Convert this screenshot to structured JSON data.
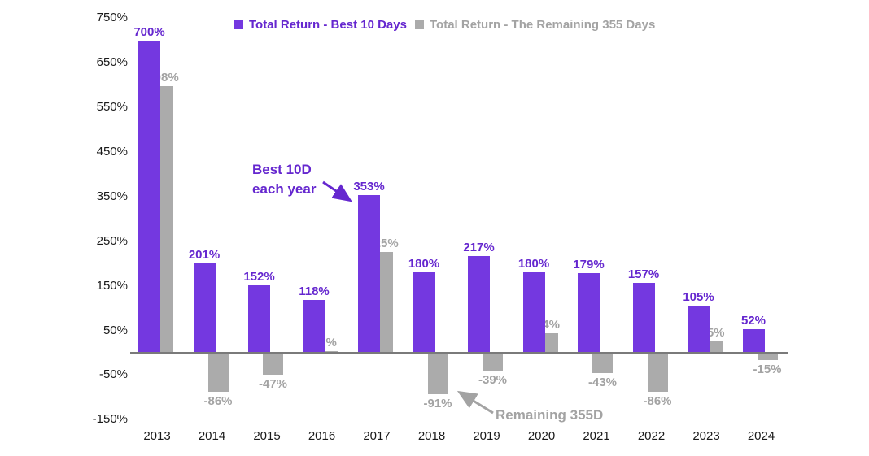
{
  "chart_data": {
    "type": "bar",
    "title": "",
    "xlabel": "",
    "ylabel": "",
    "grid": false,
    "background": "#ffffff",
    "categories": [
      "2013",
      "2014",
      "2015",
      "2016",
      "2017",
      "2018",
      "2019",
      "2020",
      "2021",
      "2022",
      "2023",
      "2024"
    ],
    "series": [
      {
        "key": "best-10-days",
        "name": "Total Return - Best 10 Days",
        "color": "#7438e0",
        "label_color": "#6527cf",
        "values": [
          700,
          201,
          152,
          118,
          353,
          180,
          217,
          180,
          179,
          157,
          105,
          52
        ],
        "labels": [
          "700%",
          "201%",
          "152%",
          "118%",
          "353%",
          "180%",
          "217%",
          "180%",
          "179%",
          "157%",
          "105%",
          "52%"
        ]
      },
      {
        "key": "remaining-355-days",
        "name": "Total Return - The Remaining 355 Days",
        "color": "#ababab",
        "label_color": "#a3a3a3",
        "values": [
          598,
          -86,
          -47,
          3,
          225,
          -91,
          -39,
          44,
          -43,
          -86,
          25,
          -15
        ],
        "labels": [
          "598%",
          "-86%",
          "-47%",
          "3%",
          "225%",
          "-91%",
          "-39%",
          "44%",
          "-43%",
          "-86%",
          "25%",
          "-15%"
        ]
      }
    ],
    "y_axis": {
      "min": -150,
      "max": 750,
      "tick_step": 100,
      "tick_values": [
        750,
        650,
        550,
        450,
        350,
        250,
        150,
        50,
        -50,
        -150
      ],
      "tick_labels": [
        "750%",
        "650%",
        "550%",
        "450%",
        "350%",
        "250%",
        "150%",
        "50%",
        "-50%",
        "-150%"
      ]
    },
    "legend": {
      "position": "top"
    },
    "annotations": [
      {
        "lines": [
          "Best 10D",
          "each year"
        ],
        "color": "#6527cf",
        "points_to": "2017 best-10-days bar"
      },
      {
        "lines": [
          "Remaining 355D"
        ],
        "color": "#a3a3a3",
        "points_to": "2018 remaining-355-days bar"
      }
    ],
    "axis_text_color": "#1a1a1a",
    "zero_line_color": "#7a7a7a"
  }
}
